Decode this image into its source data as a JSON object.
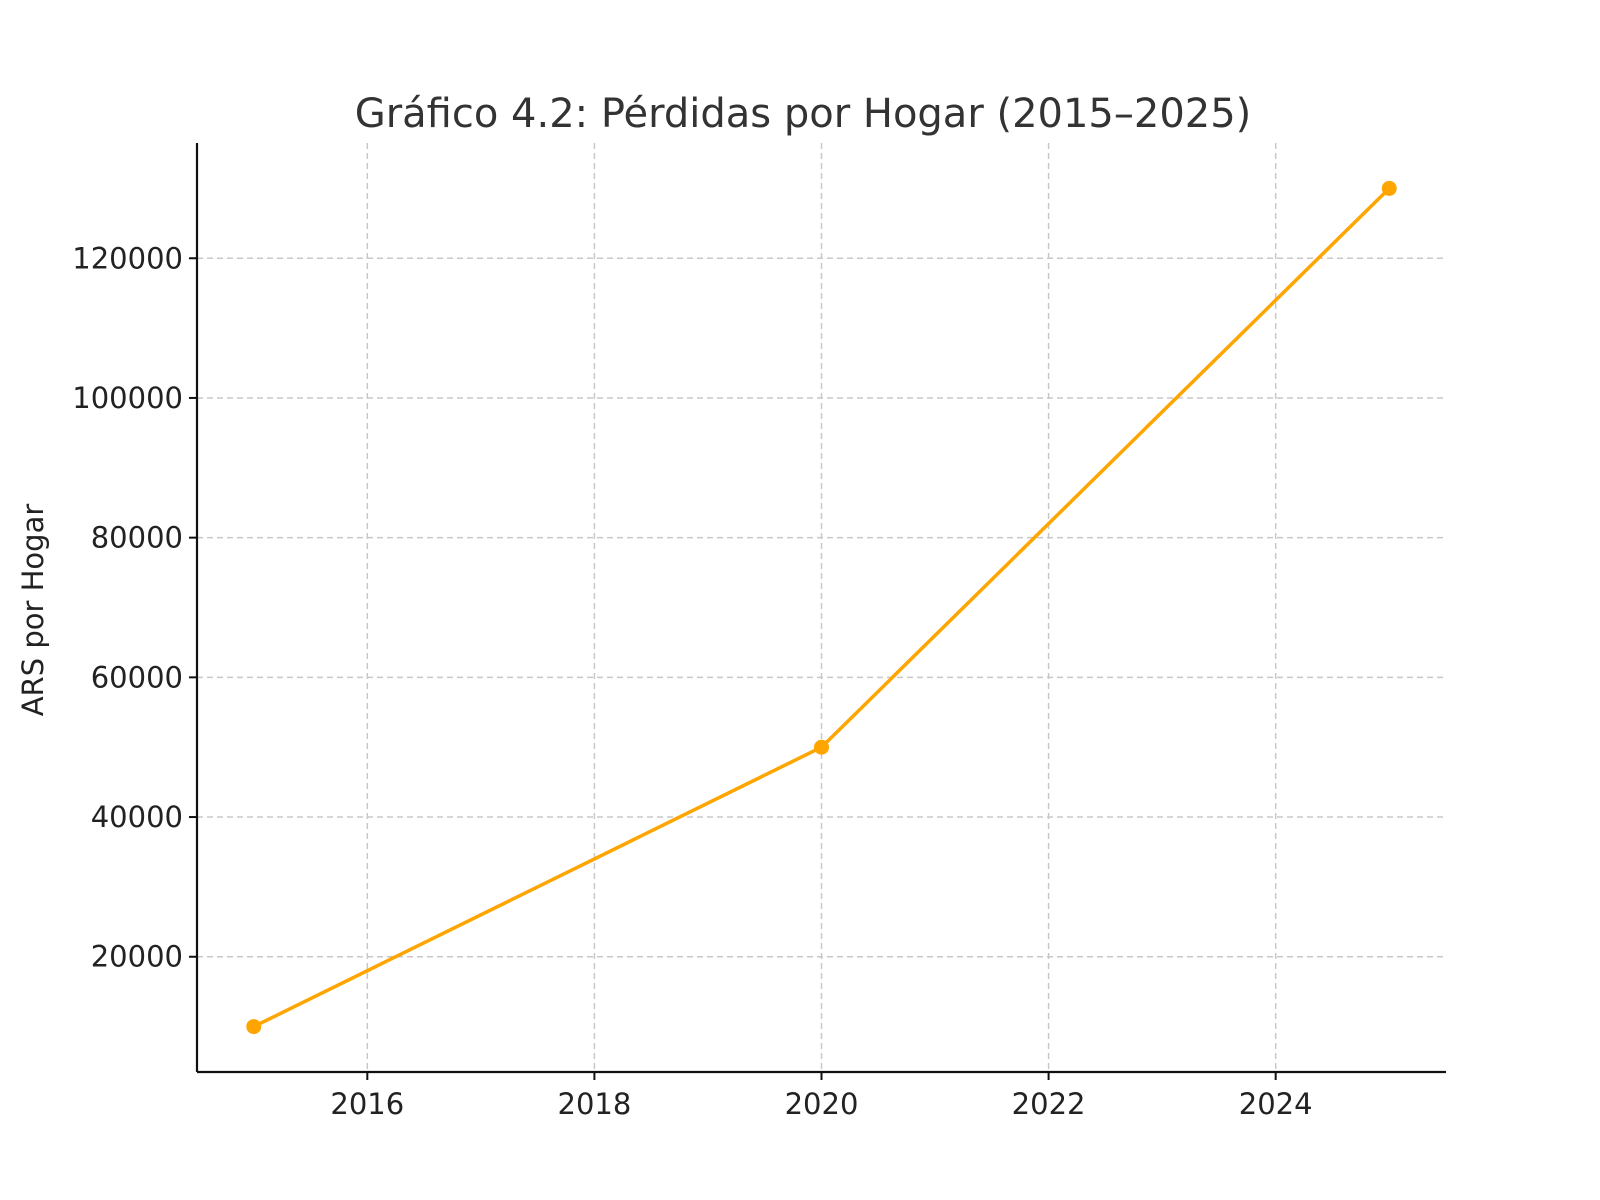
{
  "chart_data": {
    "type": "line",
    "title": "Gráfico 4.2: Pérdidas por Hogar (2015–2025)",
    "xlabel": "",
    "ylabel": "ARS por Hogar",
    "x": [
      2015,
      2020,
      2025
    ],
    "series": [
      {
        "values": [
          10000,
          50000,
          130000
        ],
        "color": "#ffa500"
      }
    ],
    "xlim": [
      2014.5,
      2025.5
    ],
    "ylim": [
      3500,
      136500
    ],
    "xticks": [
      2016,
      2018,
      2020,
      2022,
      2024
    ],
    "yticks": [
      20000,
      40000,
      60000,
      80000,
      100000,
      120000
    ],
    "xtick_labels": [
      "2016",
      "2018",
      "2020",
      "2022",
      "2024"
    ],
    "ytick_labels": [
      "20000",
      "40000",
      "60000",
      "80000",
      "100000",
      "120000"
    ],
    "grid": true,
    "legend": "none",
    "colors": {
      "line": "#ffa500",
      "grid": "#c8c8c8",
      "axis": "#111111",
      "title": "#333333",
      "text": "#222222"
    }
  }
}
